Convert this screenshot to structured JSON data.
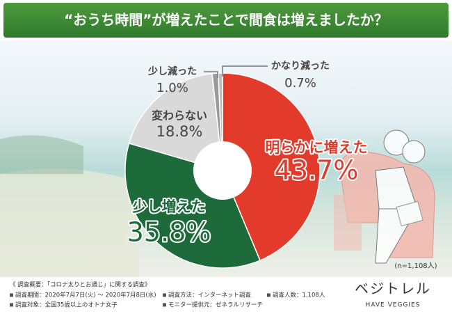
{
  "chart_data": {
    "type": "pie",
    "title": "“おうち時間”が増えたことで間食は増えましたか？",
    "categories": [
      "明らかに増えた",
      "少し増えた",
      "変わらない",
      "少し減った",
      "かなり減った"
    ],
    "values": [
      43.7,
      35.8,
      18.8,
      1.0,
      0.7
    ],
    "value_labels": [
      "43.7%",
      "35.8%",
      "18.8%",
      "1.0%",
      "0.7%"
    ],
    "colors": [
      "#e23b2c",
      "#1d6b3b",
      "#d9d9d9",
      "#9a9a9a",
      "#bdbdbd"
    ],
    "note": "(n=1,108人)"
  },
  "footer": {
    "heading": "《 調査概要：「コロナ太りとお通じ」に関する調査》",
    "items": [
      "調査期間：2020年7月7日(火) ～ 2020年7月8日(水)",
      "調査方法：インターネット調査",
      "調査人数：1,108人",
      "調査対象：全国35歳以上のオトナ女子",
      "モニター提供元：ゼネラルリサーチ"
    ]
  },
  "logo": {
    "name": "ベジトレル",
    "tagline": "HAVE VEGGIES"
  }
}
